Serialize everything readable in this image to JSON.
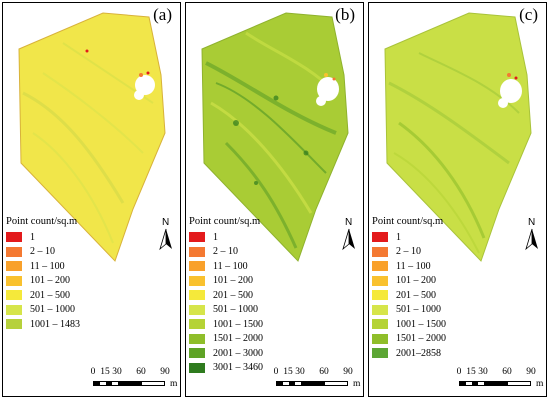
{
  "colors": {
    "c1": "#e31a1c",
    "c2_10": "#f47932",
    "c11_100": "#f9a12b",
    "c101_200": "#f9c12e",
    "c201_500": "#f5e93a",
    "c501_1000": "#d6e54a",
    "c1001_1483": "#b6d13b",
    "c1001_1500": "#b5d335",
    "c1501_2000": "#8fbe2a",
    "c2001_3000": "#5fa326",
    "c3001_3460": "#2f7b1e",
    "c2001_2858": "#5ca634"
  },
  "panels": [
    {
      "label": "(a)",
      "base_fill": "#f1e64a",
      "legend_title": "Point count/sq.m",
      "legend": [
        {
          "label": "1",
          "color": "#e31a1c"
        },
        {
          "label": "2 – 10",
          "color": "#f47932"
        },
        {
          "label": "11 – 100",
          "color": "#f9a12b"
        },
        {
          "label": "101 – 200",
          "color": "#f9c12e"
        },
        {
          "label": "201 – 500",
          "color": "#f5e93a"
        },
        {
          "label": "501 – 1000",
          "color": "#d6e54a"
        },
        {
          "label": "1001 – 1483",
          "color": "#b6d13b"
        }
      ],
      "north_label": "N",
      "scale": {
        "ticks": [
          "0",
          "15",
          "30",
          "60",
          "90"
        ],
        "unit": "m"
      }
    },
    {
      "label": "(b)",
      "base_fill": "#a9cc35",
      "legend_title": "Point count/sq.m",
      "legend": [
        {
          "label": "1",
          "color": "#e31a1c"
        },
        {
          "label": "2 – 10",
          "color": "#f47932"
        },
        {
          "label": "11 – 100",
          "color": "#f9a12b"
        },
        {
          "label": "101 – 200",
          "color": "#f9c12e"
        },
        {
          "label": "201 – 500",
          "color": "#f5e93a"
        },
        {
          "label": "501 – 1000",
          "color": "#d6e54a"
        },
        {
          "label": "1001 – 1500",
          "color": "#b5d335"
        },
        {
          "label": "1501 – 2000",
          "color": "#8fbe2a"
        },
        {
          "label": "2001 – 3000",
          "color": "#5fa326"
        },
        {
          "label": "3001 – 3460",
          "color": "#2f7b1e"
        }
      ],
      "north_label": "N",
      "scale": {
        "ticks": [
          "0",
          "15",
          "30",
          "60",
          "90"
        ],
        "unit": "m"
      }
    },
    {
      "label": "(c)",
      "base_fill": "#c9df46",
      "legend_title": "Point count/sq.m",
      "legend": [
        {
          "label": "1",
          "color": "#e31a1c"
        },
        {
          "label": "2 – 10",
          "color": "#f47932"
        },
        {
          "label": "11 – 100",
          "color": "#f9a12b"
        },
        {
          "label": "101 – 200",
          "color": "#f9c12e"
        },
        {
          "label": "201 – 500",
          "color": "#f5e93a"
        },
        {
          "label": "501 – 1000",
          "color": "#d6e54a"
        },
        {
          "label": "1001 – 1500",
          "color": "#b5d335"
        },
        {
          "label": "1501 – 2000",
          "color": "#8fbe2a"
        },
        {
          "label": "2001–2858",
          "color": "#5ca634"
        }
      ],
      "north_label": "N",
      "scale": {
        "ticks": [
          "0",
          "15",
          "30",
          "60",
          "90"
        ],
        "unit": "m"
      }
    }
  ]
}
